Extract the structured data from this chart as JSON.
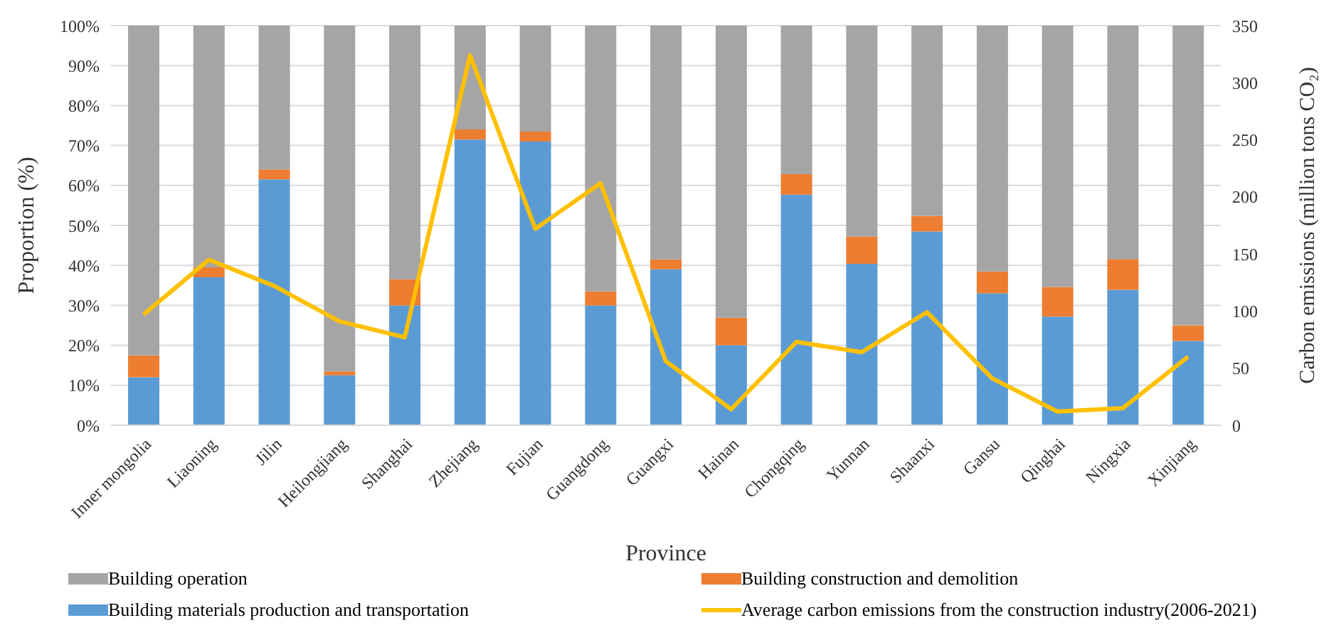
{
  "chart_data": {
    "type": "bar",
    "stacked": true,
    "xlabel": "Province",
    "ylabel": "Proportion (%)",
    "y2label": "Carbon emissions (million tons CO₂)",
    "categories": [
      "Inner mongolia",
      "Liaoning",
      "Jilin",
      "Heilongjiang",
      "Shanghai",
      "Zhejiang",
      "Fujian",
      "Guangdong",
      "Guangxi",
      "Hainan",
      "Chongqing",
      "Yunnan",
      "Shaanxi",
      "Gansu",
      "Qinghai",
      "Ningxia",
      "Xinjiang"
    ],
    "series": [
      {
        "name": "Building materials production and transportation",
        "color": "#5b9bd5",
        "values": [
          12,
          37,
          61.5,
          12.5,
          30,
          71.5,
          71,
          30,
          39,
          20,
          57.7,
          40.4,
          48.5,
          33,
          27.2,
          33.9,
          21.1
        ]
      },
      {
        "name": "Building construction and demolition",
        "color": "#ed7d31",
        "values": [
          5.5,
          2.5,
          2.5,
          1,
          6.5,
          2.5,
          2.5,
          3.5,
          2.5,
          6.9,
          5.1,
          6.8,
          3.9,
          5.5,
          7.4,
          7.7,
          3.9
        ]
      },
      {
        "name": "Building operation",
        "color": "#a5a5a5",
        "values": [
          82.5,
          60.5,
          36,
          86.5,
          63.5,
          26,
          26.5,
          66.5,
          58.5,
          73.1,
          37.2,
          52.8,
          47.6,
          61.5,
          65.4,
          58.4,
          75
        ]
      },
      {
        "name": "Average carbon emissions from the construction industry(2006-2021)",
        "color": "#ffc000",
        "type": "line",
        "axis": "y2",
        "values": [
          97,
          145,
          122,
          91,
          77,
          324,
          172,
          212,
          56,
          14,
          73,
          64,
          99,
          41,
          12,
          15,
          60
        ]
      }
    ],
    "ylim": [
      0,
      100
    ],
    "yticks": [
      {
        "value": 0,
        "label": "0%"
      },
      {
        "value": 10,
        "label": "10%"
      },
      {
        "value": 20,
        "label": "20%"
      },
      {
        "value": 30,
        "label": "30%"
      },
      {
        "value": 40,
        "label": "40%"
      },
      {
        "value": 50,
        "label": "50%"
      },
      {
        "value": 60,
        "label": "60%"
      },
      {
        "value": 70,
        "label": "70%"
      },
      {
        "value": 80,
        "label": "80%"
      },
      {
        "value": 90,
        "label": "90%"
      },
      {
        "value": 100,
        "label": "100%"
      }
    ],
    "y2lim": [
      0,
      350
    ],
    "y2ticks": [
      0,
      50,
      100,
      150,
      200,
      250,
      300,
      350
    ],
    "grid": "y",
    "legend": "bottom",
    "marker": "none",
    "line_style": "solid"
  }
}
